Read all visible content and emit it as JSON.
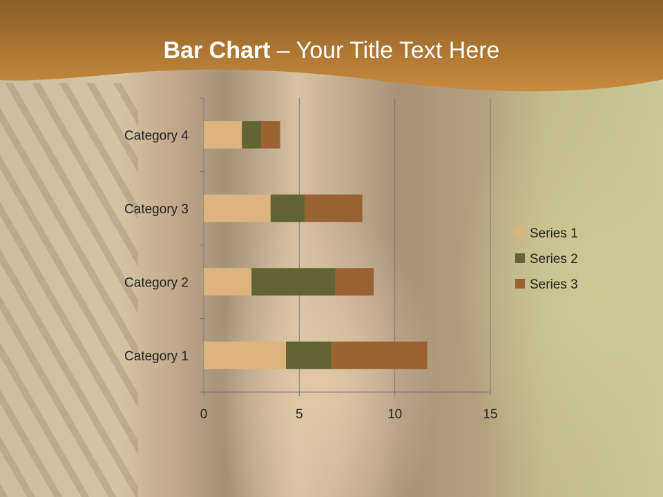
{
  "title": {
    "bold": "Bar Chart",
    "rest": " – Your Title Text Here"
  },
  "chart_data": {
    "type": "bar",
    "orientation": "horizontal",
    "stacked": true,
    "categories": [
      "Category 1",
      "Category 2",
      "Category 3",
      "Category 4"
    ],
    "series": [
      {
        "name": "Series 1",
        "values": [
          4.3,
          2.5,
          3.5,
          2
        ],
        "color": "#DDB47F"
      },
      {
        "name": "Series 2",
        "values": [
          2.4,
          4.4,
          1.8,
          1
        ],
        "color": "#636433"
      },
      {
        "name": "Series 3",
        "values": [
          5,
          2,
          3,
          1
        ],
        "color": "#9A6233"
      }
    ],
    "xlim": [
      0,
      15
    ],
    "xticks": [
      "0",
      "5",
      "10",
      "15"
    ],
    "grid": true,
    "legend": "right"
  },
  "colors": {
    "banner": "#B07A35"
  }
}
